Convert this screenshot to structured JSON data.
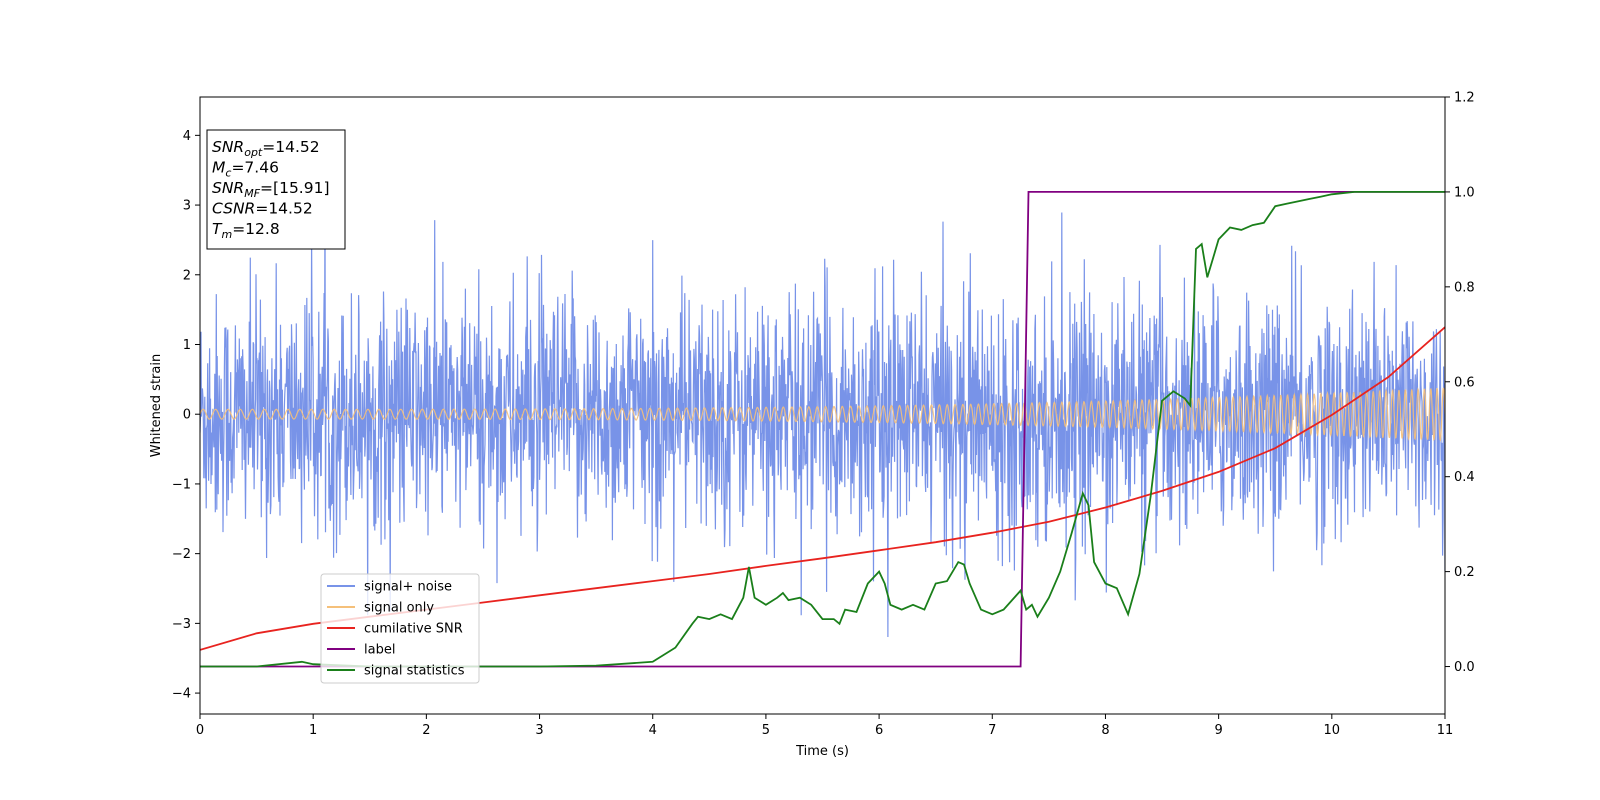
{
  "chart_data": {
    "type": "line",
    "xlabel": "Time (s)",
    "ylabel": "Whitened strain",
    "xlim": [
      0,
      11
    ],
    "ylim": [
      -4.3,
      4.55
    ],
    "y2lim": [
      -0.1,
      1.2
    ],
    "xticks": [
      0,
      1,
      2,
      3,
      4,
      5,
      6,
      7,
      8,
      9,
      10,
      11
    ],
    "yticks": [
      -4,
      -3,
      -2,
      -1,
      0,
      1,
      2,
      3,
      4
    ],
    "y2ticks": [
      0.0,
      0.2,
      0.4,
      0.6,
      0.8,
      1.0,
      1.2
    ],
    "grid": false,
    "legend_position": "lower-left",
    "annotation": {
      "lines": [
        {
          "name": "SNR",
          "sub": "opt",
          "value": "=14.52"
        },
        {
          "name": "M",
          "sub": "c",
          "value": "=7.46"
        },
        {
          "name": "SNR",
          "sub": "MF",
          "value": "=[15.91]"
        },
        {
          "name": "CSNR",
          "sub": "",
          "value": "=14.52"
        },
        {
          "name": "T",
          "sub": "m",
          "value": "=12.8"
        }
      ]
    },
    "series": [
      {
        "name": "signal+ noise",
        "color": "#7893e8",
        "axis": "left",
        "kind": "noise",
        "sigma": 0.85,
        "range": [
          -3.9,
          4.2
        ]
      },
      {
        "name": "signal only",
        "color": "#f5c07a",
        "axis": "left",
        "kind": "chirp",
        "amplitude_start": 0.07,
        "amplitude_end": 0.38
      },
      {
        "name": "cumilative SNR",
        "color": "#e8231f",
        "axis": "right",
        "x": [
          0,
          0.5,
          1,
          1.5,
          2,
          2.5,
          3,
          3.5,
          4,
          4.5,
          5,
          5.5,
          6,
          6.5,
          7,
          7.5,
          8,
          8.5,
          9,
          9.5,
          10,
          10.5,
          11
        ],
        "y": [
          0.035,
          0.07,
          0.09,
          0.105,
          0.12,
          0.135,
          0.15,
          0.165,
          0.18,
          0.195,
          0.212,
          0.228,
          0.245,
          0.262,
          0.282,
          0.305,
          0.335,
          0.37,
          0.41,
          0.46,
          0.53,
          0.61,
          0.715
        ]
      },
      {
        "name": "label",
        "color": "#800080",
        "axis": "right",
        "x": [
          0,
          7.25,
          7.32,
          11
        ],
        "y": [
          0,
          0,
          1,
          1
        ]
      },
      {
        "name": "signal statistics",
        "color": "#1a7f1a",
        "axis": "right",
        "x": [
          0,
          0.5,
          0.9,
          1.0,
          1.5,
          2,
          2.5,
          3,
          3.5,
          4.0,
          4.2,
          4.35,
          4.4,
          4.5,
          4.6,
          4.7,
          4.8,
          4.85,
          4.9,
          5.0,
          5.1,
          5.15,
          5.2,
          5.3,
          5.4,
          5.5,
          5.6,
          5.65,
          5.7,
          5.8,
          5.9,
          6.0,
          6.05,
          6.1,
          6.2,
          6.3,
          6.4,
          6.5,
          6.6,
          6.7,
          6.75,
          6.8,
          6.9,
          7.0,
          7.1,
          7.25,
          7.3,
          7.35,
          7.4,
          7.5,
          7.6,
          7.7,
          7.8,
          7.85,
          7.9,
          8.0,
          8.1,
          8.2,
          8.3,
          8.4,
          8.5,
          8.6,
          8.7,
          8.75,
          8.8,
          8.85,
          8.9,
          8.95,
          9.0,
          9.1,
          9.2,
          9.3,
          9.4,
          9.5,
          9.6,
          9.7,
          9.8,
          9.9,
          10.0,
          10.2,
          10.5,
          11
        ],
        "y": [
          0,
          0,
          0.01,
          0.005,
          0,
          0,
          0,
          0.0,
          0.002,
          0.01,
          0.04,
          0.09,
          0.105,
          0.1,
          0.11,
          0.1,
          0.145,
          0.21,
          0.145,
          0.13,
          0.145,
          0.155,
          0.14,
          0.145,
          0.13,
          0.1,
          0.1,
          0.09,
          0.12,
          0.115,
          0.175,
          0.2,
          0.175,
          0.13,
          0.12,
          0.13,
          0.12,
          0.175,
          0.18,
          0.22,
          0.215,
          0.175,
          0.12,
          0.11,
          0.12,
          0.16,
          0.12,
          0.13,
          0.105,
          0.145,
          0.2,
          0.28,
          0.365,
          0.34,
          0.22,
          0.175,
          0.165,
          0.11,
          0.195,
          0.36,
          0.56,
          0.58,
          0.565,
          0.55,
          0.88,
          0.89,
          0.82,
          0.86,
          0.9,
          0.925,
          0.92,
          0.93,
          0.935,
          0.97,
          0.975,
          0.98,
          0.985,
          0.99,
          0.995,
          1.0,
          1.0,
          1.0
        ]
      }
    ]
  }
}
